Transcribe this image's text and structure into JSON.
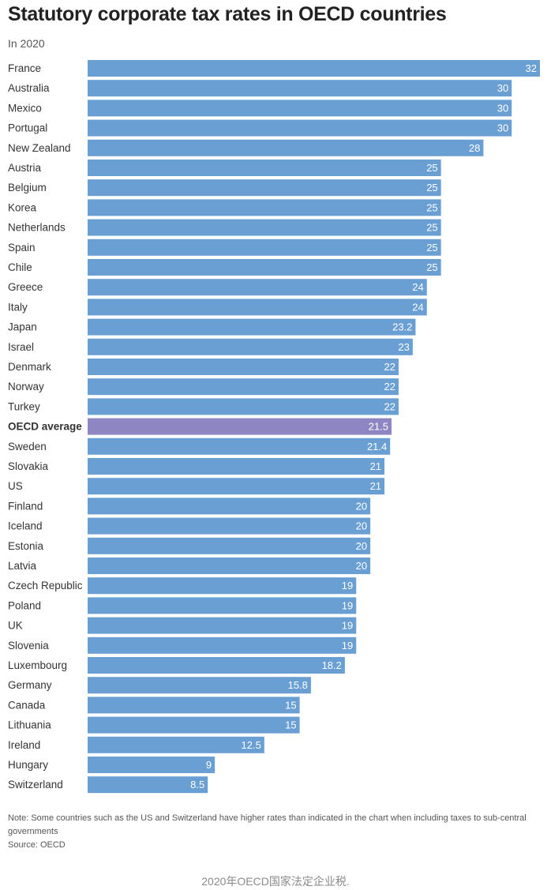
{
  "header": {
    "title": "Statutory corporate tax rates in OECD countries",
    "subtitle": "In 2020"
  },
  "footer": {
    "note": "Note: Some countries such as the US and Switzerland have higher rates than indicated in the chart when including taxes to sub-central governments",
    "source": "Source: OECD",
    "caption": "2020年OECD国家法定企业税."
  },
  "colors": {
    "bar": "#6a9fd4",
    "highlight_bar": "#8e86c3",
    "bar_label": "#ffffff",
    "category_label": "#333333"
  },
  "chart_data": {
    "type": "bar",
    "orientation": "horizontal",
    "title": "Statutory corporate tax rates in OECD countries",
    "subtitle": "In 2020",
    "xlabel": "",
    "ylabel": "",
    "xlim": [
      0,
      32
    ],
    "grid": false,
    "legend": "none",
    "highlight": "OECD average",
    "categories": [
      "France",
      "Australia",
      "Mexico",
      "Portugal",
      "New Zealand",
      "Austria",
      "Belgium",
      "Korea",
      "Netherlands",
      "Spain",
      "Chile",
      "Greece",
      "Italy",
      "Japan",
      "Israel",
      "Denmark",
      "Norway",
      "Turkey",
      "OECD average",
      "Sweden",
      "Slovakia",
      "US",
      "Finland",
      "Iceland",
      "Estonia",
      "Latvia",
      "Czech Republic",
      "Poland",
      "UK",
      "Slovenia",
      "Luxembourg",
      "Germany",
      "Canada",
      "Lithuania",
      "Ireland",
      "Hungary",
      "Switzerland"
    ],
    "values": [
      32,
      30,
      30,
      30,
      28,
      25,
      25,
      25,
      25,
      25,
      25,
      24,
      24,
      23.2,
      23,
      22,
      22,
      22,
      21.5,
      21.4,
      21,
      21,
      20,
      20,
      20,
      20,
      19,
      19,
      19,
      19,
      18.2,
      15.8,
      15,
      15,
      12.5,
      9,
      8.5
    ]
  }
}
